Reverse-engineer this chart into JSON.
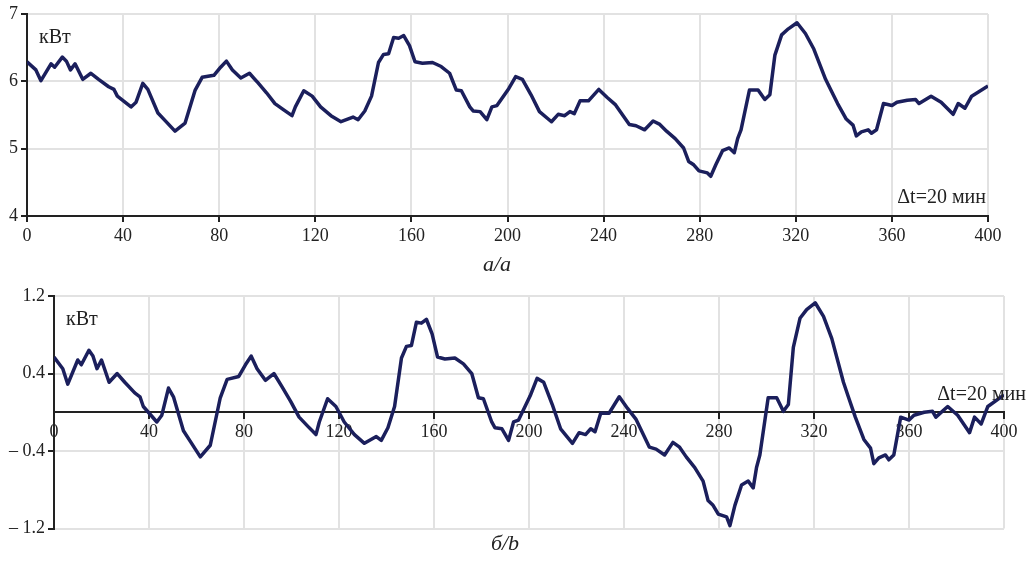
{
  "chart_data": [
    {
      "type": "line",
      "title": "a/a",
      "ylabel": "кВт",
      "annotations": [
        "Δt=20 мин"
      ],
      "color": "#1b1f5c",
      "grid": true,
      "xlim": [
        0,
        400
      ],
      "xticks": [
        0,
        40,
        80,
        120,
        160,
        200,
        240,
        280,
        320,
        360,
        400
      ],
      "ylim": [
        4,
        7
      ],
      "yticks": [
        4,
        5,
        6,
        7
      ],
      "x": [
        0,
        3.7,
        5.8,
        10,
        11.5,
        14.7,
        16.4,
        18.1,
        20,
        23.2,
        26.6,
        29.8,
        34,
        36.2,
        37.6,
        43.3,
        45.4,
        48.2,
        50.3,
        54.5,
        57.4,
        61.6,
        65.8,
        70,
        72.9,
        77.8,
        80.6,
        83,
        85.5,
        89,
        92.6,
        96.1,
        99.7,
        103.2,
        106.7,
        110.3,
        111.7,
        115.2,
        118.7,
        122.2,
        126.5,
        130.7,
        135.7,
        137.8,
        140.6,
        143.4,
        146.3,
        148.4,
        150.5,
        152.6,
        154.7,
        156.8,
        159.2,
        161.5,
        164.6,
        168.8,
        172.4,
        175.9,
        178.7,
        180.8,
        184.3,
        185.7,
        188.6,
        191.4,
        193.5,
        195.6,
        200.5,
        203.4,
        206.2,
        209.8,
        213.3,
        218.3,
        221.1,
        223.8,
        226,
        227.8,
        230.2,
        233.7,
        238,
        241.5,
        245,
        250.7,
        253.5,
        257.1,
        260.6,
        263.4,
        266.2,
        269.8,
        273.3,
        275.4,
        277.5,
        279.7,
        283.2,
        284.6,
        286.7,
        289.5,
        292.3,
        294.4,
        295.8,
        297.2,
        300.7,
        304.3,
        307.1,
        309.2,
        311.3,
        314.1,
        316.9,
        320.5,
        324,
        327.5,
        332.4,
        334.6,
        337.4,
        341,
        343.8,
        345.2,
        347.3,
        350.1,
        351.5,
        353.6,
        356.5,
        360,
        362.1,
        366.4,
        369.9,
        371.3,
        376.3,
        380.5,
        385.5,
        387.6,
        390.4,
        393.2,
        400
      ],
      "values": [
        6.29,
        6.17,
        6.01,
        6.26,
        6.21,
        6.36,
        6.3,
        6.17,
        6.26,
        6.03,
        6.12,
        6.03,
        5.92,
        5.88,
        5.78,
        5.62,
        5.69,
        5.97,
        5.88,
        5.53,
        5.42,
        5.26,
        5.38,
        5.87,
        6.06,
        6.09,
        6.21,
        6.3,
        6.17,
        6.05,
        6.12,
        5.98,
        5.83,
        5.67,
        5.58,
        5.49,
        5.62,
        5.86,
        5.78,
        5.62,
        5.49,
        5.4,
        5.47,
        5.43,
        5.56,
        5.78,
        6.28,
        6.4,
        6.41,
        6.65,
        6.64,
        6.68,
        6.53,
        6.29,
        6.27,
        6.28,
        6.22,
        6.12,
        5.87,
        5.86,
        5.62,
        5.56,
        5.55,
        5.43,
        5.62,
        5.64,
        5.89,
        6.07,
        6.03,
        5.8,
        5.55,
        5.4,
        5.51,
        5.49,
        5.55,
        5.52,
        5.71,
        5.71,
        5.88,
        5.76,
        5.65,
        5.36,
        5.34,
        5.28,
        5.41,
        5.36,
        5.26,
        5.15,
        5.01,
        4.81,
        4.76,
        4.67,
        4.64,
        4.59,
        4.76,
        4.97,
        5.01,
        4.94,
        5.15,
        5.28,
        5.87,
        5.87,
        5.73,
        5.8,
        6.39,
        6.69,
        6.78,
        6.87,
        6.71,
        6.48,
        6.03,
        5.87,
        5.67,
        5.44,
        5.35,
        5.19,
        5.25,
        5.28,
        5.23,
        5.28,
        5.67,
        5.64,
        5.69,
        5.72,
        5.73,
        5.67,
        5.78,
        5.69,
        5.51,
        5.67,
        5.6,
        5.78,
        5.93
      ]
    },
    {
      "type": "line",
      "title": "б/b",
      "ylabel": "кВт",
      "annotations": [
        "Δt=20 мин"
      ],
      "color": "#1b1f5c",
      "grid": true,
      "xlim": [
        0,
        400
      ],
      "xticks": [
        0,
        40,
        80,
        120,
        160,
        200,
        240,
        280,
        320,
        360,
        400
      ],
      "ylim": [
        -1.2,
        1.2
      ],
      "yticks": [
        {
          "value": -1.2,
          "label": "– 1.2"
        },
        {
          "value": -0.4,
          "label": "– 0.4"
        },
        0.4,
        1.2
      ],
      "x": [
        0,
        3.7,
        5.8,
        10,
        11.5,
        14.7,
        16.4,
        18.1,
        20,
        23.2,
        26.6,
        29.8,
        34,
        36.2,
        37.6,
        43.3,
        45.4,
        48.2,
        50.3,
        54.5,
        57.4,
        61.6,
        65.8,
        70,
        72.9,
        77.8,
        80.6,
        83,
        85.5,
        89,
        92.6,
        96.1,
        99.7,
        103.2,
        106.7,
        110.3,
        111.7,
        115.2,
        118.7,
        122.2,
        126.5,
        130.7,
        135.7,
        137.8,
        140.6,
        143.4,
        146.3,
        148.4,
        150.5,
        152.6,
        154.7,
        156.8,
        159.2,
        161.5,
        164.6,
        168.8,
        172.4,
        175.9,
        178.7,
        180.8,
        184.3,
        185.7,
        188.6,
        191.4,
        193.5,
        195.6,
        200.5,
        203.4,
        206.2,
        209.8,
        213.3,
        218.3,
        221.1,
        223.8,
        226,
        227.8,
        230.2,
        233.7,
        238,
        241.5,
        245,
        250.7,
        253.5,
        257.1,
        260.6,
        263.4,
        266.2,
        269.8,
        273.3,
        275.4,
        277.5,
        279.7,
        283.2,
        284.6,
        286.7,
        289.5,
        292.3,
        294.4,
        295.8,
        297.2,
        300.7,
        304.3,
        307.1,
        309.2,
        311.3,
        314.1,
        316.9,
        320.5,
        324,
        327.5,
        332.4,
        334.6,
        337.4,
        341,
        343.8,
        345.2,
        347.3,
        350.1,
        351.5,
        353.6,
        356.5,
        360,
        362.1,
        366.4,
        369.9,
        371.3,
        376.3,
        380.5,
        385.5,
        387.6,
        390.4,
        393.2,
        400
      ],
      "values": [
        0.57,
        0.45,
        0.29,
        0.54,
        0.49,
        0.64,
        0.58,
        0.45,
        0.54,
        0.31,
        0.4,
        0.31,
        0.2,
        0.16,
        0.06,
        -0.1,
        -0.03,
        0.25,
        0.16,
        -0.19,
        -0.3,
        -0.46,
        -0.34,
        0.15,
        0.34,
        0.37,
        0.49,
        0.58,
        0.45,
        0.33,
        0.4,
        0.26,
        0.11,
        -0.05,
        -0.14,
        -0.23,
        -0.1,
        0.14,
        0.06,
        -0.1,
        -0.23,
        -0.32,
        -0.25,
        -0.29,
        -0.16,
        0.06,
        0.56,
        0.68,
        0.69,
        0.93,
        0.92,
        0.96,
        0.81,
        0.57,
        0.55,
        0.56,
        0.5,
        0.4,
        0.15,
        0.14,
        -0.1,
        -0.16,
        -0.17,
        -0.29,
        -0.1,
        -0.08,
        0.17,
        0.35,
        0.31,
        0.08,
        -0.17,
        -0.32,
        -0.21,
        -0.23,
        -0.17,
        -0.2,
        -0.01,
        -0.01,
        0.16,
        0.04,
        -0.07,
        -0.36,
        -0.38,
        -0.44,
        -0.31,
        -0.36,
        -0.46,
        -0.57,
        -0.71,
        -0.91,
        -0.96,
        -1.05,
        -1.08,
        -1.17,
        -0.96,
        -0.75,
        -0.71,
        -0.78,
        -0.57,
        -0.44,
        0.15,
        0.15,
        0.01,
        0.08,
        0.67,
        0.97,
        1.06,
        1.13,
        0.99,
        0.76,
        0.31,
        0.15,
        -0.05,
        -0.28,
        -0.37,
        -0.53,
        -0.47,
        -0.44,
        -0.49,
        -0.44,
        -0.05,
        -0.08,
        -0.03,
        0.0,
        0.01,
        -0.05,
        0.06,
        -0.03,
        -0.21,
        -0.05,
        -0.12,
        0.06,
        0.18
      ]
    }
  ]
}
